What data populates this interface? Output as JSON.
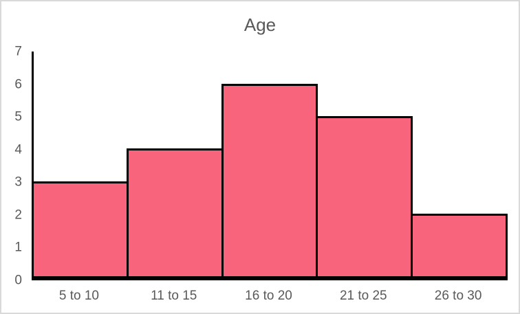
{
  "figure": {
    "background": "#FFFFFF",
    "frame_border_color": "#D9D9D9"
  },
  "chart_data": {
    "type": "bar",
    "subtype": "histogram",
    "title": "Age",
    "categories": [
      "5 to 10",
      "11 to 15",
      "16 to 20",
      "21 to 25",
      "26 to 30"
    ],
    "values": [
      3,
      4,
      6,
      5,
      2
    ],
    "xlabel": "",
    "ylabel": "",
    "ylim": [
      0,
      7
    ],
    "yticks": [
      0,
      1,
      2,
      3,
      4,
      5,
      6,
      7
    ],
    "bar_gap": 0,
    "grid": false,
    "legend_position": "none",
    "colors": {
      "bar_fill": "#F8647C",
      "bar_border": "#000000",
      "axis_line": "#000000",
      "tick_label": "#595959",
      "title": "#595959"
    }
  }
}
